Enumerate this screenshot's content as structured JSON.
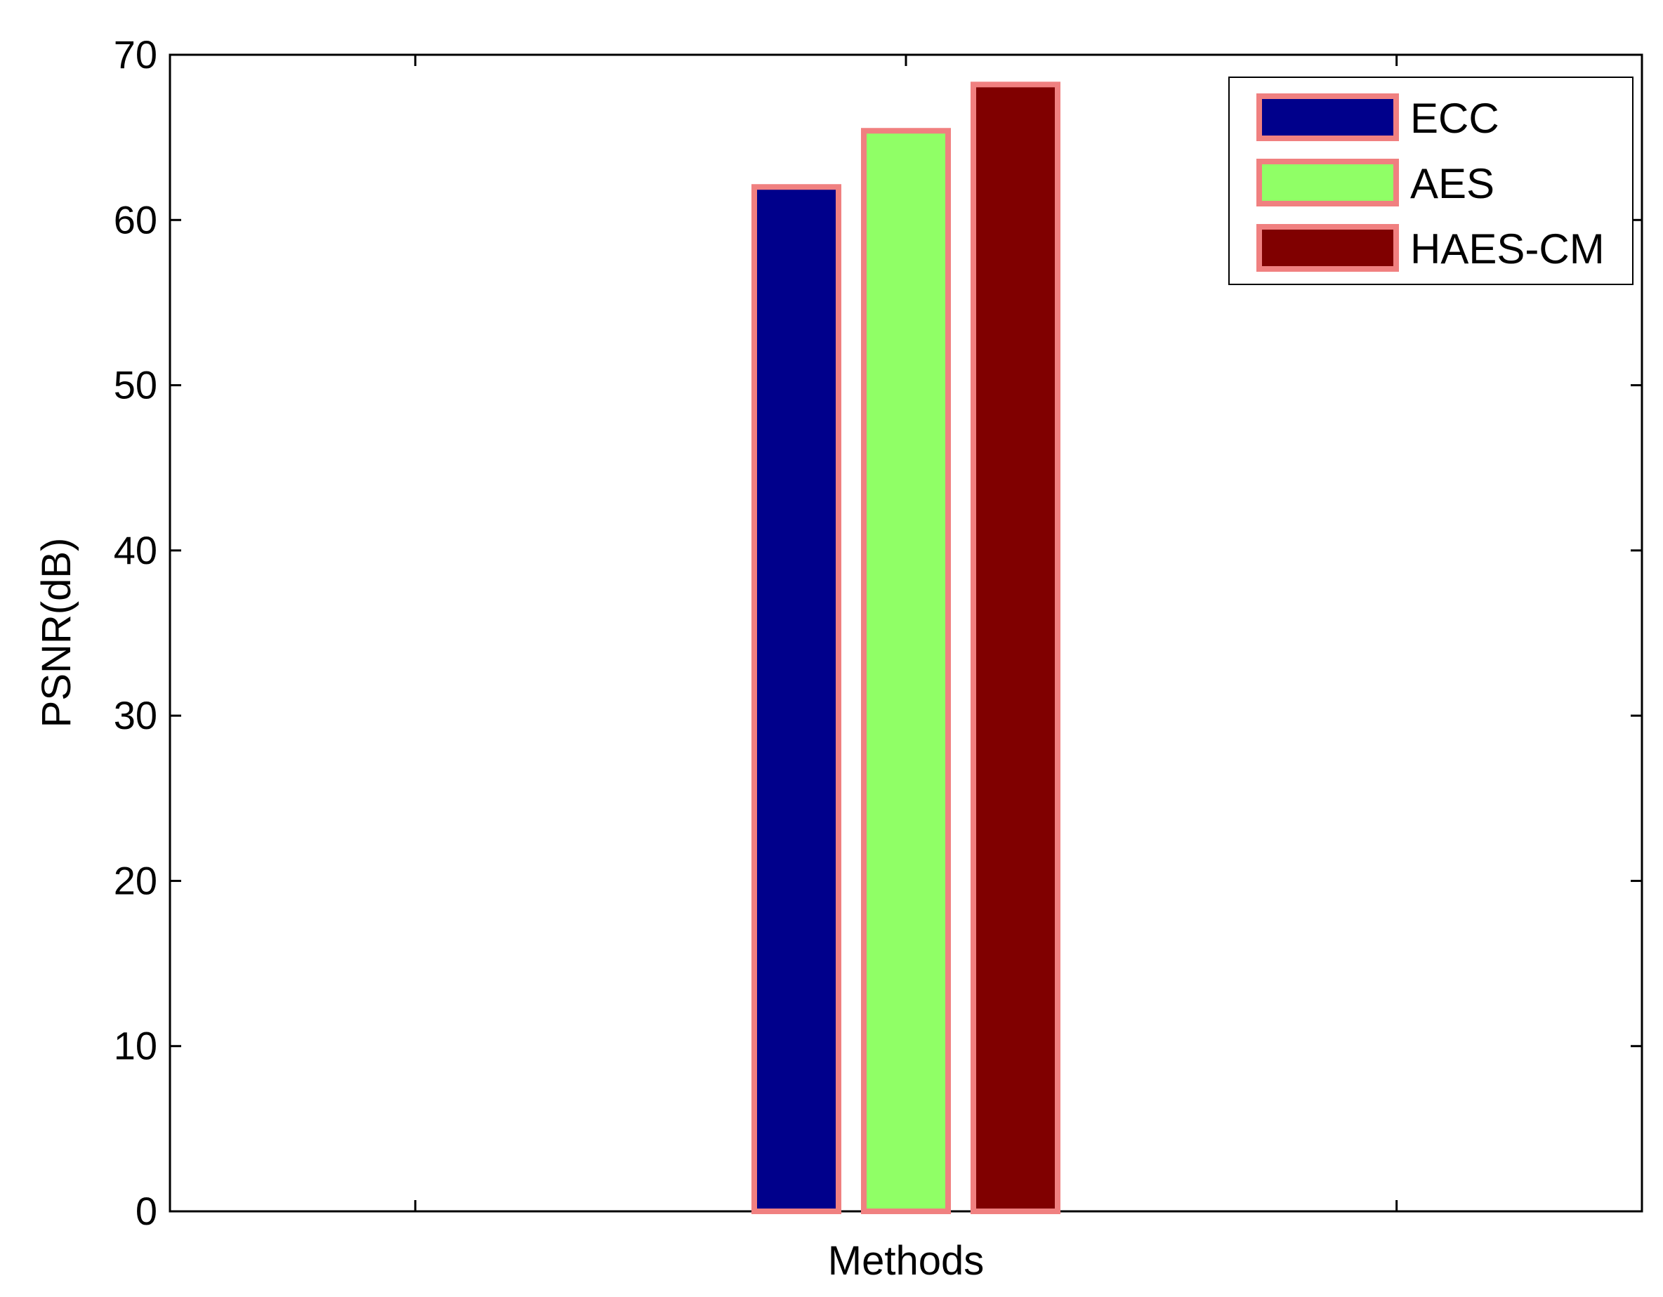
{
  "chart_data": {
    "type": "bar",
    "title": "",
    "xlabel": "Methods",
    "ylabel": "PSNR(dB)",
    "categories": [
      "1",
      "2",
      "3"
    ],
    "show_category_labels": false,
    "ylim": [
      0,
      70
    ],
    "yticks": [
      "0",
      "10",
      "20",
      "30",
      "40",
      "50",
      "60",
      "70"
    ],
    "grid": false,
    "legend_position": "top-right",
    "edge_color": "#f08080",
    "series": [
      {
        "name": "ECC",
        "color": "#00008b",
        "values": [
          0,
          62,
          0
        ]
      },
      {
        "name": "AES",
        "color": "#90ff66",
        "values": [
          0,
          65.4,
          0
        ]
      },
      {
        "name": "HAES-CM",
        "color": "#800000",
        "values": [
          0,
          68.2,
          0
        ]
      }
    ]
  }
}
